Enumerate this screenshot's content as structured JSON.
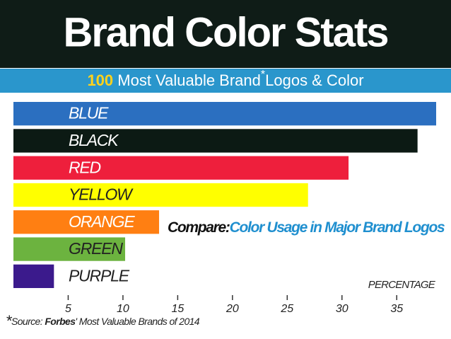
{
  "chart_data": {
    "type": "bar",
    "orientation": "horizontal",
    "title": "Brand Color Stats",
    "subtitle_parts": [
      "100",
      "Most Valuable Brand",
      "*",
      "Logos & Color"
    ],
    "categories": [
      "BLUE",
      "BLACK",
      "RED",
      "YELLOW",
      "ORANGE",
      "GREEN",
      "PURPLE"
    ],
    "values": [
      38.6,
      36.9,
      30.6,
      26.9,
      13.3,
      10.2,
      3.7
    ],
    "colors": [
      "#2b6fc0",
      "#0c1a14",
      "#ee1f3c",
      "#ffff00",
      "#ff7f12",
      "#6cb33f",
      "#3b1a8c"
    ],
    "xlim": [
      0,
      38.6
    ],
    "xticks": [
      5,
      10,
      15,
      20,
      25,
      30,
      35
    ],
    "x_label": "PERCENTAGE",
    "annotation_parts": [
      "Compare:",
      "Color Usage in Major Brand Logos"
    ],
    "source_parts": [
      "*",
      "Source: ",
      "Forbes",
      "' Most Valuable Brands of 2014"
    ]
  }
}
